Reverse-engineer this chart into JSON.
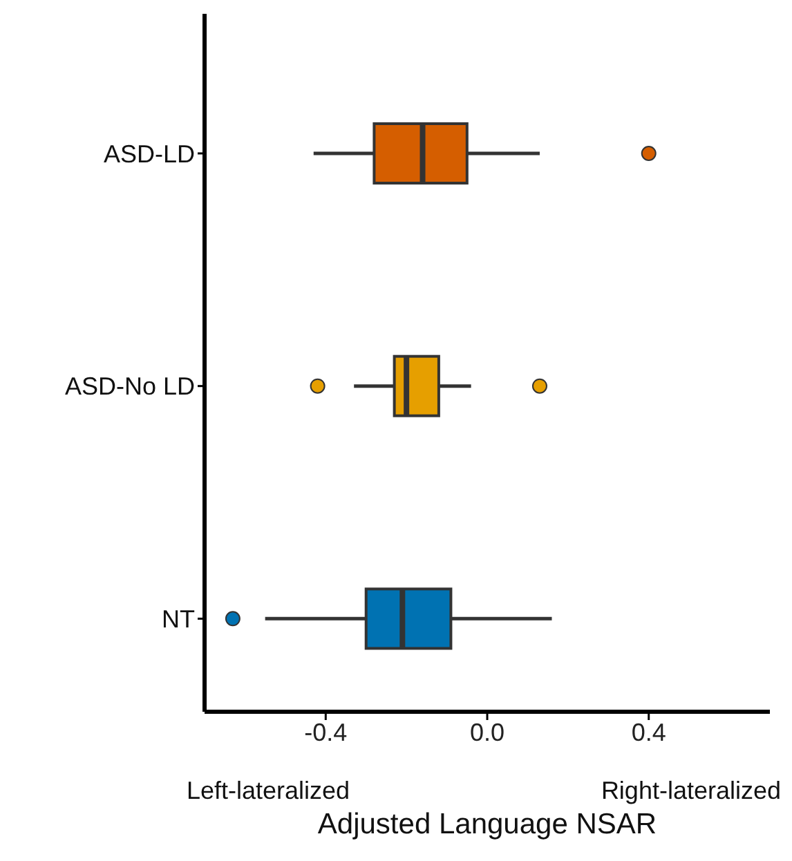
{
  "chart_data": {
    "type": "box",
    "orientation": "horizontal",
    "categories": [
      "ASD-LD",
      "ASD-No LD",
      "NT"
    ],
    "colors": [
      "#d55e00",
      "#e69f00",
      "#0072b2"
    ],
    "boxes": [
      {
        "low": -0.43,
        "q1": -0.28,
        "median": -0.16,
        "q3": -0.05,
        "high": 0.13,
        "outliers": [
          0.4
        ]
      },
      {
        "low": -0.33,
        "q1": -0.23,
        "median": -0.2,
        "q3": -0.12,
        "high": -0.04,
        "outliers": [
          -0.42,
          0.13
        ]
      },
      {
        "low": -0.55,
        "q1": -0.3,
        "median": -0.21,
        "q3": -0.09,
        "high": 0.16,
        "outliers": [
          -0.63
        ]
      }
    ],
    "xlim": [
      -0.7,
      0.7
    ],
    "xticks": [
      -0.4,
      {
        "value": 0,
        "label": "0.0"
      },
      0.4
    ],
    "xlabel": "Adjusted Language NSAR",
    "annotations": [
      "Left-lateralized",
      "Right-lateralized"
    ]
  }
}
